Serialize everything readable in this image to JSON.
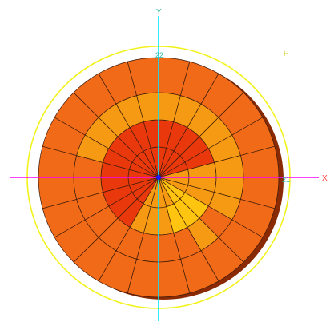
{
  "axes": {
    "x_label": "X",
    "y_label": "Y",
    "x_color": "#ff00ff",
    "y_color": "#00e5ff",
    "x_label_color": "#ff3b3b",
    "y_label_color": "#2bb7a3",
    "origin_color": "#1a1aff"
  },
  "labels": {
    "top_value": "22",
    "right_value": "21",
    "corner_label": "H"
  },
  "colors": {
    "ring": "#f2f21a",
    "outline": "#3b1a0a",
    "shadow": "#8a2a05",
    "palette": {
      "R": "#e9390c",
      "O": "#f06a17",
      "A": "#f59a12",
      "L": "#ffc40f",
      "Y": "#ffe812"
    }
  },
  "mesh": {
    "sectors": 24,
    "rings": 4,
    "cells": [
      [
        "O",
        "O",
        "O",
        "O",
        "O",
        "O",
        "O",
        "O",
        "O",
        "O",
        "O",
        "O",
        "O",
        "O",
        "O",
        "O",
        "O",
        "O",
        "O",
        "O",
        "O",
        "O",
        "O",
        "O"
      ],
      [
        "A",
        "A",
        "A",
        "A",
        "A",
        "A",
        "A",
        "A",
        "O",
        "A",
        "O",
        "O",
        "O",
        "O",
        "O",
        "O",
        "O",
        "O",
        "O",
        "A",
        "A",
        "A",
        "A",
        "A"
      ],
      [
        "R",
        "R",
        "R",
        "R",
        "R",
        "A",
        "A",
        "A",
        "L",
        "L",
        "L",
        "A",
        "A",
        "A",
        "R",
        "R",
        "R",
        "R",
        "R",
        "R",
        "R",
        "R",
        "R",
        "R"
      ],
      [
        "R",
        "R",
        "R",
        "R",
        "R",
        "A",
        "A",
        "A",
        "L",
        "L",
        "A",
        "A",
        "A",
        "A",
        "R",
        "R",
        "R",
        "R",
        "R",
        "R",
        "R",
        "R",
        "R",
        "R"
      ]
    ]
  }
}
